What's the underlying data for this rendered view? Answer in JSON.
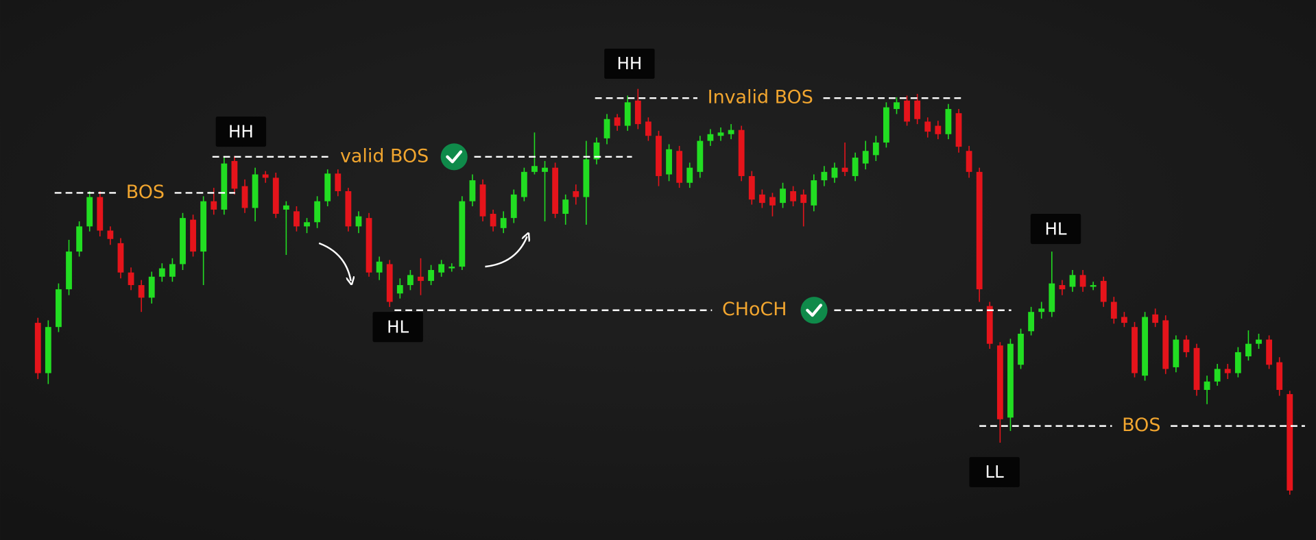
{
  "chart_data": {
    "type": "candlestick",
    "ylim": [
      0,
      644
    ],
    "up_color": "#22dd22",
    "down_color": "#e5141b",
    "candles": [
      [
        259,
        265,
        192,
        199
      ],
      [
        199,
        262,
        186,
        254
      ],
      [
        254,
        306,
        248,
        299
      ],
      [
        299,
        358,
        292,
        344
      ],
      [
        344,
        380,
        338,
        374
      ],
      [
        374,
        416,
        368,
        409
      ],
      [
        409,
        416,
        362,
        369
      ],
      [
        369,
        374,
        352,
        359
      ],
      [
        354,
        360,
        312,
        319
      ],
      [
        319,
        325,
        298,
        304
      ],
      [
        304,
        310,
        272,
        289
      ],
      [
        289,
        320,
        282,
        314
      ],
      [
        314,
        330,
        308,
        324
      ],
      [
        314,
        336,
        308,
        329
      ],
      [
        329,
        390,
        322,
        384
      ],
      [
        382,
        388,
        338,
        344
      ],
      [
        344,
        410,
        304,
        404
      ],
      [
        404,
        420,
        388,
        394
      ],
      [
        394,
        458,
        388,
        449
      ],
      [
        452,
        458,
        412,
        419
      ],
      [
        422,
        430,
        390,
        396
      ],
      [
        396,
        444,
        380,
        436
      ],
      [
        436,
        440,
        426,
        432
      ],
      [
        432,
        438,
        384,
        389
      ],
      [
        394,
        404,
        340,
        399
      ],
      [
        392,
        398,
        368,
        374
      ],
      [
        374,
        384,
        366,
        379
      ],
      [
        379,
        410,
        372,
        404
      ],
      [
        404,
        442,
        398,
        437
      ],
      [
        437,
        442,
        410,
        416
      ],
      [
        416,
        420,
        368,
        374
      ],
      [
        374,
        392,
        366,
        386
      ],
      [
        384,
        390,
        314,
        319
      ],
      [
        319,
        338,
        310,
        332
      ],
      [
        329,
        334,
        278,
        284
      ],
      [
        294,
        312,
        288,
        304
      ],
      [
        304,
        322,
        298,
        316
      ],
      [
        314,
        336,
        292,
        309
      ],
      [
        309,
        328,
        304,
        322
      ],
      [
        319,
        334,
        314,
        329
      ],
      [
        324,
        330,
        320,
        326
      ],
      [
        326,
        410,
        322,
        404
      ],
      [
        404,
        436,
        398,
        429
      ],
      [
        424,
        430,
        380,
        386
      ],
      [
        389,
        394,
        368,
        374
      ],
      [
        372,
        392,
        366,
        384
      ],
      [
        384,
        418,
        378,
        412
      ],
      [
        409,
        444,
        404,
        439
      ],
      [
        439,
        486,
        436,
        446
      ],
      [
        439,
        452,
        380,
        444
      ],
      [
        444,
        450,
        384,
        389
      ],
      [
        389,
        412,
        376,
        406
      ],
      [
        416,
        424,
        400,
        409
      ],
      [
        409,
        476,
        376,
        454
      ],
      [
        454,
        480,
        448,
        474
      ],
      [
        479,
        508,
        472,
        502
      ],
      [
        504,
        508,
        488,
        494
      ],
      [
        494,
        530,
        488,
        522
      ],
      [
        524,
        538,
        490,
        496
      ],
      [
        499,
        504,
        476,
        482
      ],
      [
        482,
        488,
        422,
        434
      ],
      [
        436,
        472,
        428,
        466
      ],
      [
        464,
        470,
        420,
        426
      ],
      [
        426,
        450,
        420,
        444
      ],
      [
        439,
        482,
        432,
        476
      ],
      [
        476,
        490,
        470,
        484
      ],
      [
        482,
        492,
        476,
        486
      ],
      [
        484,
        496,
        478,
        489
      ],
      [
        489,
        494,
        428,
        434
      ],
      [
        434,
        440,
        400,
        406
      ],
      [
        412,
        418,
        396,
        402
      ],
      [
        409,
        414,
        386,
        399
      ],
      [
        402,
        426,
        396,
        419
      ],
      [
        416,
        422,
        398,
        404
      ],
      [
        412,
        418,
        374,
        402
      ],
      [
        399,
        436,
        392,
        429
      ],
      [
        429,
        446,
        422,
        439
      ],
      [
        432,
        450,
        426,
        444
      ],
      [
        444,
        474,
        434,
        439
      ],
      [
        434,
        462,
        428,
        456
      ],
      [
        449,
        476,
        442,
        464
      ],
      [
        459,
        482,
        452,
        474
      ],
      [
        474,
        522,
        468,
        516
      ],
      [
        514,
        528,
        508,
        522
      ],
      [
        524,
        530,
        494,
        499
      ],
      [
        524,
        532,
        496,
        502
      ],
      [
        499,
        504,
        480,
        487
      ],
      [
        494,
        500,
        478,
        484
      ],
      [
        484,
        520,
        478,
        514
      ],
      [
        509,
        514,
        462,
        469
      ],
      [
        464,
        470,
        432,
        439
      ],
      [
        439,
        444,
        284,
        299
      ],
      [
        279,
        284,
        228,
        234
      ],
      [
        232,
        236,
        116,
        144
      ],
      [
        146,
        240,
        130,
        234
      ],
      [
        209,
        252,
        204,
        246
      ],
      [
        249,
        278,
        244,
        272
      ],
      [
        272,
        284,
        264,
        276
      ],
      [
        272,
        344,
        266,
        306
      ],
      [
        304,
        310,
        292,
        299
      ],
      [
        302,
        322,
        296,
        316
      ],
      [
        316,
        322,
        296,
        302
      ],
      [
        302,
        308,
        298,
        304
      ],
      [
        309,
        314,
        278,
        284
      ],
      [
        284,
        290,
        258,
        264
      ],
      [
        266,
        272,
        254,
        259
      ],
      [
        254,
        260,
        194,
        199
      ],
      [
        196,
        272,
        190,
        266
      ],
      [
        269,
        276,
        254,
        259
      ],
      [
        262,
        268,
        198,
        204
      ],
      [
        206,
        244,
        200,
        239
      ],
      [
        239,
        244,
        218,
        224
      ],
      [
        229,
        234,
        172,
        179
      ],
      [
        179,
        196,
        162,
        189
      ],
      [
        189,
        210,
        184,
        204
      ],
      [
        204,
        210,
        192,
        199
      ],
      [
        199,
        230,
        194,
        224
      ],
      [
        219,
        250,
        214,
        234
      ],
      [
        234,
        246,
        228,
        239
      ],
      [
        239,
        244,
        204,
        209
      ],
      [
        212,
        218,
        172,
        179
      ],
      [
        174,
        178,
        54,
        59
      ]
    ],
    "levels": [
      {
        "label": "BOS",
        "value": 414
      },
      {
        "label": "valid BOS",
        "value": 457,
        "checked": true
      },
      {
        "label": "Invalid BOS",
        "value": 527
      },
      {
        "label": "CHoCH",
        "value": 274,
        "checked": true
      },
      {
        "label": "BOS",
        "value": 136
      }
    ],
    "swing_labels": [
      "HH",
      "HH",
      "HL",
      "HL",
      "LL"
    ]
  }
}
